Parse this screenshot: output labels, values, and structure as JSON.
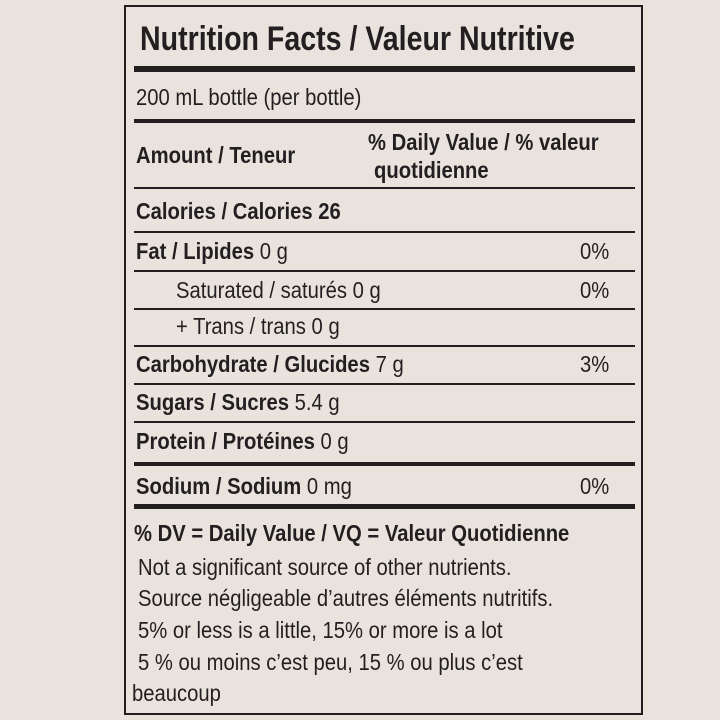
{
  "title": "Nutrition Facts / Valeur Nutritive",
  "serving": "200 mL bottle (per bottle)",
  "header": {
    "amount": "Amount / Teneur",
    "dv": [
      "% Daily Value / % valeur",
      "quotidienne"
    ]
  },
  "rows": [
    {
      "label": "Calories / Calories",
      "amount": "26"
    },
    {
      "label": "Fat / Lipides",
      "amount": "0 g",
      "dv": "0%"
    },
    {
      "label": "Saturated / saturés",
      "amount": "0 g",
      "dv": "0%"
    },
    {
      "label": "+ Trans / trans",
      "amount": "0 g"
    },
    {
      "label": "Carbohydrate / Glucides",
      "amount": "7 g",
      "dv": "3%"
    },
    {
      "label": "Sugars / Sucres",
      "amount": "5.4 g"
    },
    {
      "label": "Protein / Protéines",
      "amount": "0 g"
    },
    {
      "label": "Sodium / Sodium",
      "amount": "0 mg",
      "dv": "0%"
    }
  ],
  "footer": {
    "heading": "% DV = Daily Value / VQ = Valeur Quotidienne",
    "notes": [
      "Not a significant source of other nutrients.",
      "Source négligeable d’autres éléments nutritifs.",
      "5% or less is a little, 15% or more is a lot",
      "5 % ou moins c’est peu, 15 % ou plus c’est",
      "beaucoup"
    ]
  }
}
